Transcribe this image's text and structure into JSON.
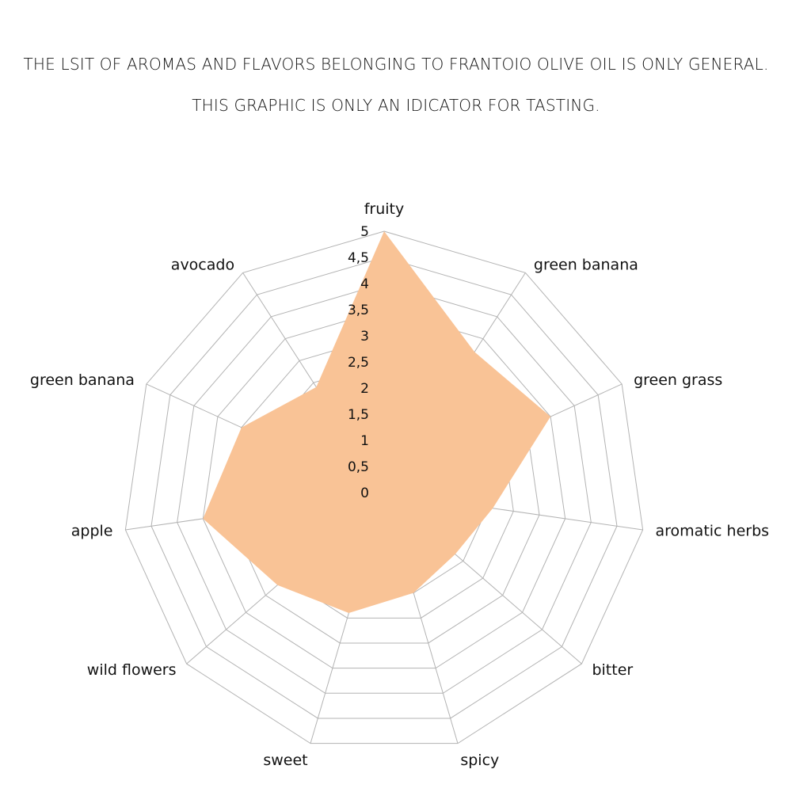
{
  "header": {
    "line1": "THE LSIT OF AROMAS AND FLAVORS BELONGING TO FRANTOIO OLIVE OIL IS ONLY GENERAL.",
    "line2": "THIS GRAPHIC IS ONLY AN IDICATOR FOR TASTING."
  },
  "chart_data": {
    "type": "radar",
    "categories": [
      "fruity",
      "green banana",
      "green grass",
      "aromatic herbs",
      "bitter",
      "spicy",
      "sweet",
      "wild flowers",
      "apple",
      "green banana",
      "avocado"
    ],
    "series": [
      {
        "values": [
          5,
          3.2,
          3.5,
          2.1,
          1.8,
          2.0,
          2.4,
          2.7,
          3.5,
          3.0,
          2.4
        ]
      }
    ],
    "range": [
      0,
      5
    ],
    "tick_step": 0.5,
    "tick_labels": [
      "0",
      "0,5",
      "1",
      "1,5",
      "2",
      "2,5",
      "3",
      "3,5",
      "4",
      "4,5",
      "5"
    ],
    "grid": true,
    "legend": "none",
    "colors": {
      "fill": "#f9c396",
      "grid": "#b3b3b3",
      "text": "#111111"
    }
  }
}
